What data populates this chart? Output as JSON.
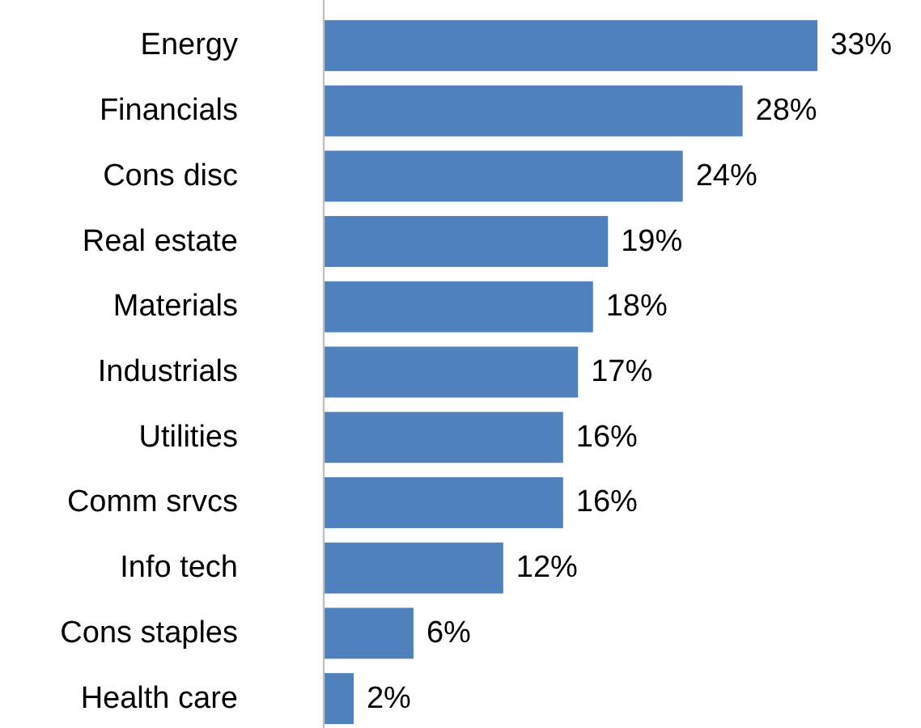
{
  "chart_data": {
    "type": "bar",
    "orientation": "horizontal",
    "categories": [
      "Energy",
      "Financials",
      "Cons disc",
      "Real estate",
      "Materials",
      "Industrials",
      "Utilities",
      "Comm srvcs",
      "Info tech",
      "Cons staples",
      "Health care"
    ],
    "values": [
      33,
      28,
      24,
      19,
      18,
      17,
      16,
      16,
      12,
      6,
      2
    ],
    "value_labels": [
      "33%",
      "28%",
      "24%",
      "19%",
      "18%",
      "17%",
      "16%",
      "16%",
      "12%",
      "6%",
      "2%"
    ],
    "color": "#4f81bd"
  }
}
